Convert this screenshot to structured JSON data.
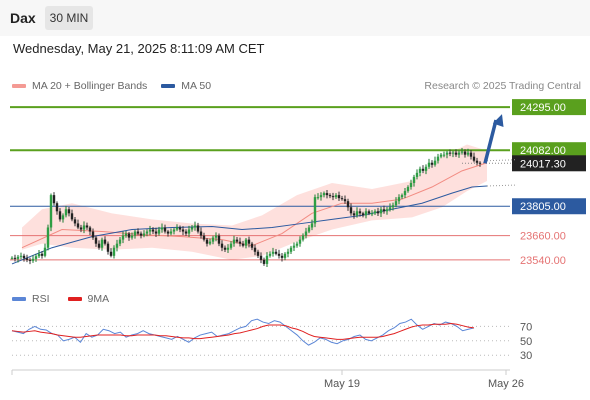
{
  "header": {
    "symbol": "Dax",
    "timeframe": "30 MIN",
    "timestamp": "Wednesday, May 21, 2025 8:11:09 AM CET"
  },
  "legend": {
    "bb_label": "MA 20 + Bollinger Bands",
    "ma50_label": "MA 50",
    "credit": "Research © 2025 Trading Central"
  },
  "rsi_legend": {
    "rsi_label": "RSI",
    "ma_label": "9MA"
  },
  "colors": {
    "green": "#5aa01e",
    "blue": "#2c5aa0",
    "red": "#e57373",
    "band": "#fdd5d2",
    "rsi": "#5b86d6",
    "rsi_ma": "#e02020"
  },
  "chart_data": {
    "type": "candlestick",
    "ylim": [
      23480,
      24340
    ],
    "levels": [
      {
        "value": 24295.0,
        "label": "24295.00",
        "kind": "resistance"
      },
      {
        "value": 24082.0,
        "label": "24082.00",
        "kind": "resistance"
      },
      {
        "value": 24017.3,
        "label": "24017.30",
        "kind": "last"
      },
      {
        "value": 23805.0,
        "label": "23805.00",
        "kind": "pivot"
      },
      {
        "value": 23660.0,
        "label": "23660.00",
        "kind": "support"
      },
      {
        "value": 23540.0,
        "label": "23540.00",
        "kind": "support"
      }
    ],
    "closes": [
      23550,
      23545,
      23555,
      23560,
      23548,
      23540,
      23535,
      23545,
      23558,
      23570,
      23560,
      23600,
      23700,
      23860,
      23820,
      23780,
      23740,
      23760,
      23790,
      23770,
      23740,
      23720,
      23700,
      23690,
      23710,
      23700,
      23680,
      23650,
      23620,
      23600,
      23640,
      23620,
      23580,
      23560,
      23600,
      23620,
      23640,
      23660,
      23670,
      23650,
      23660,
      23680,
      23670,
      23660,
      23670,
      23680,
      23690,
      23680,
      23670,
      23690,
      23700,
      23680,
      23670,
      23680,
      23690,
      23700,
      23690,
      23680,
      23670,
      23690,
      23700,
      23710,
      23680,
      23660,
      23640,
      23620,
      23630,
      23650,
      23660,
      23620,
      23600,
      23590,
      23600,
      23620,
      23640,
      23630,
      23620,
      23610,
      23640,
      23620,
      23600,
      23580,
      23560,
      23540,
      23520,
      23560,
      23570,
      23580,
      23570,
      23560,
      23550,
      23570,
      23580,
      23600,
      23610,
      23620,
      23640,
      23660,
      23680,
      23700,
      23720,
      23850,
      23850,
      23860,
      23870,
      23860,
      23855,
      23850,
      23860,
      23845,
      23840,
      23830,
      23800,
      23770,
      23760,
      23780,
      23770,
      23760,
      23780,
      23770,
      23770,
      23780,
      23770,
      23790,
      23780,
      23790,
      23800,
      23810,
      23830,
      23850,
      23860,
      23880,
      23900,
      23920,
      23950,
      23970,
      23990,
      23980,
      24000,
      24020,
      24010,
      24030,
      24050,
      24060,
      24060,
      24070,
      24065,
      24070,
      24060,
      24070,
      24075,
      24060,
      24070,
      24050,
      24030,
      24020,
      24017.3
    ],
    "ma50": [
      [
        0,
        23520
      ],
      [
        40,
        23600
      ],
      [
        80,
        23655
      ],
      [
        120,
        23690
      ],
      [
        160,
        23700
      ],
      [
        200,
        23705
      ],
      [
        230,
        23690
      ],
      [
        260,
        23700
      ],
      [
        290,
        23720
      ],
      [
        320,
        23740
      ],
      [
        350,
        23760
      ],
      [
        380,
        23790
      ],
      [
        410,
        23820
      ],
      [
        440,
        23870
      ],
      [
        460,
        23900
      ],
      [
        475,
        23905
      ]
    ],
    "ma20": [
      [
        10,
        23600
      ],
      [
        50,
        23690
      ],
      [
        90,
        23680
      ],
      [
        130,
        23665
      ],
      [
        170,
        23655
      ],
      [
        210,
        23640
      ],
      [
        240,
        23610
      ],
      [
        270,
        23670
      ],
      [
        300,
        23770
      ],
      [
        330,
        23820
      ],
      [
        360,
        23820
      ],
      [
        390,
        23840
      ],
      [
        420,
        23900
      ],
      [
        450,
        23980
      ],
      [
        475,
        24020
      ]
    ],
    "bb_upper": [
      [
        10,
        23700
      ],
      [
        30,
        23790
      ],
      [
        60,
        23820
      ],
      [
        100,
        23770
      ],
      [
        140,
        23740
      ],
      [
        180,
        23720
      ],
      [
        220,
        23710
      ],
      [
        250,
        23760
      ],
      [
        285,
        23860
      ],
      [
        320,
        23920
      ],
      [
        360,
        23890
      ],
      [
        400,
        23930
      ],
      [
        430,
        24050
      ],
      [
        455,
        24110
      ],
      [
        475,
        24080
      ]
    ],
    "bb_lower": [
      [
        475,
        23930
      ],
      [
        455,
        23880
      ],
      [
        430,
        23800
      ],
      [
        400,
        23750
      ],
      [
        360,
        23735
      ],
      [
        320,
        23690
      ],
      [
        285,
        23630
      ],
      [
        250,
        23560
      ],
      [
        220,
        23540
      ],
      [
        180,
        23580
      ],
      [
        140,
        23600
      ],
      [
        100,
        23590
      ],
      [
        60,
        23600
      ],
      [
        30,
        23620
      ],
      [
        10,
        23590
      ]
    ],
    "ma_proj": [
      [
        475,
        24030
      ],
      [
        505,
        24035
      ]
    ],
    "ma50_proj": [
      [
        475,
        23905
      ],
      [
        505,
        23910
      ]
    ],
    "forecast_arrow": {
      "from": 24017.3,
      "to": 24290.0
    },
    "xlabels": [
      {
        "label": "May 19",
        "idx": 330
      },
      {
        "label": "May 26",
        "idx": 494
      }
    ],
    "rsi": {
      "ylim": [
        15,
        90
      ],
      "levels": [
        {
          "value": 70,
          "label": "70"
        },
        {
          "value": 50,
          "label": "50"
        },
        {
          "value": 30,
          "label": "30"
        }
      ],
      "rsi_values": [
        64,
        62,
        60,
        66,
        70,
        66,
        65,
        60,
        58,
        50,
        52,
        55,
        48,
        60,
        55,
        58,
        66,
        64,
        60,
        62,
        55,
        58,
        60,
        64,
        60,
        58,
        56,
        54,
        52,
        56,
        52,
        48,
        54,
        58,
        60,
        62,
        56,
        58,
        60,
        64,
        68,
        70,
        78,
        80,
        76,
        74,
        78,
        76,
        70,
        64,
        58,
        50,
        44,
        48,
        54,
        52,
        48,
        46,
        50,
        52,
        56,
        58,
        52,
        50,
        54,
        58,
        64,
        68,
        74,
        76,
        80,
        72,
        66,
        70,
        74,
        72,
        76,
        74,
        70,
        64,
        66,
        68
      ],
      "ma_values": [
        64,
        63,
        62,
        63,
        64,
        62,
        61,
        60,
        58,
        57,
        56,
        55,
        55,
        56,
        57,
        58,
        58,
        58,
        58,
        58,
        57,
        57,
        58,
        58,
        58,
        58,
        57,
        57,
        56,
        55,
        54,
        54,
        53,
        53,
        54,
        55,
        56,
        57,
        58,
        60,
        61,
        63,
        65,
        67,
        70,
        72,
        72,
        72,
        71,
        68,
        66,
        63,
        59,
        56,
        55,
        54,
        53,
        52,
        52,
        53,
        54,
        55,
        55,
        55,
        55,
        56,
        58,
        60,
        63,
        66,
        69,
        71,
        72,
        72,
        73,
        73,
        73,
        74,
        73,
        71,
        69,
        68
      ]
    }
  }
}
